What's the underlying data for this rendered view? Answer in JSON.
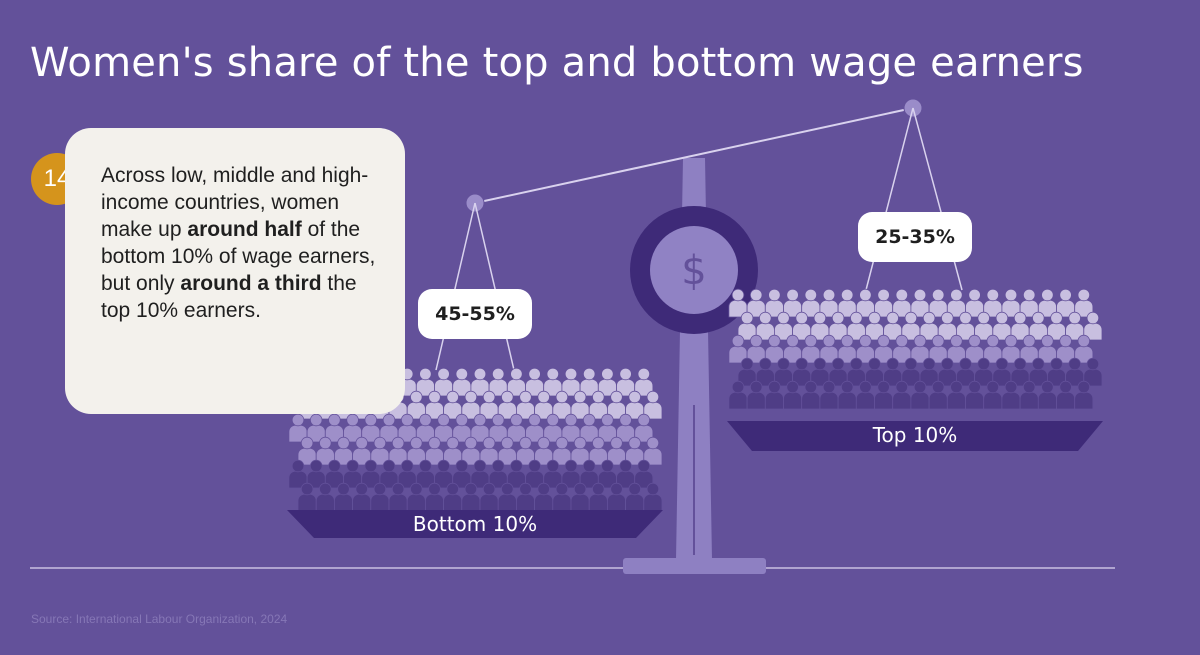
{
  "title": "Women's share of the top and bottom wage earners",
  "callout": {
    "number": "14",
    "text_parts": [
      {
        "t": "Across low, middle and high-income countries, women make up ",
        "bold": false
      },
      {
        "t": "around half",
        "bold": true
      },
      {
        "t": " of the bottom 10% of wage earners, but only ",
        "bold": false
      },
      {
        "t": "around a third",
        "bold": true
      },
      {
        "t": " the top 10% earners.",
        "bold": false
      }
    ]
  },
  "left_pan": {
    "label": "Bottom 10%",
    "share_label": "45-55%",
    "women_share": 0.5
  },
  "right_pan": {
    "label": "Top 10%",
    "share_label": "25-35%",
    "women_share": 0.3
  },
  "scale_icon": "dollar-icon",
  "source": "Source: International Labour Organization, 2024",
  "colors": {
    "background": "#63519a",
    "card": "#f3f1ec",
    "badge": "#d5941c",
    "pan": "#3e2a78",
    "figure_light": "#c8bfe0",
    "figure_mid": "#9e8fc9",
    "figure_dark": "#4f3d86"
  }
}
